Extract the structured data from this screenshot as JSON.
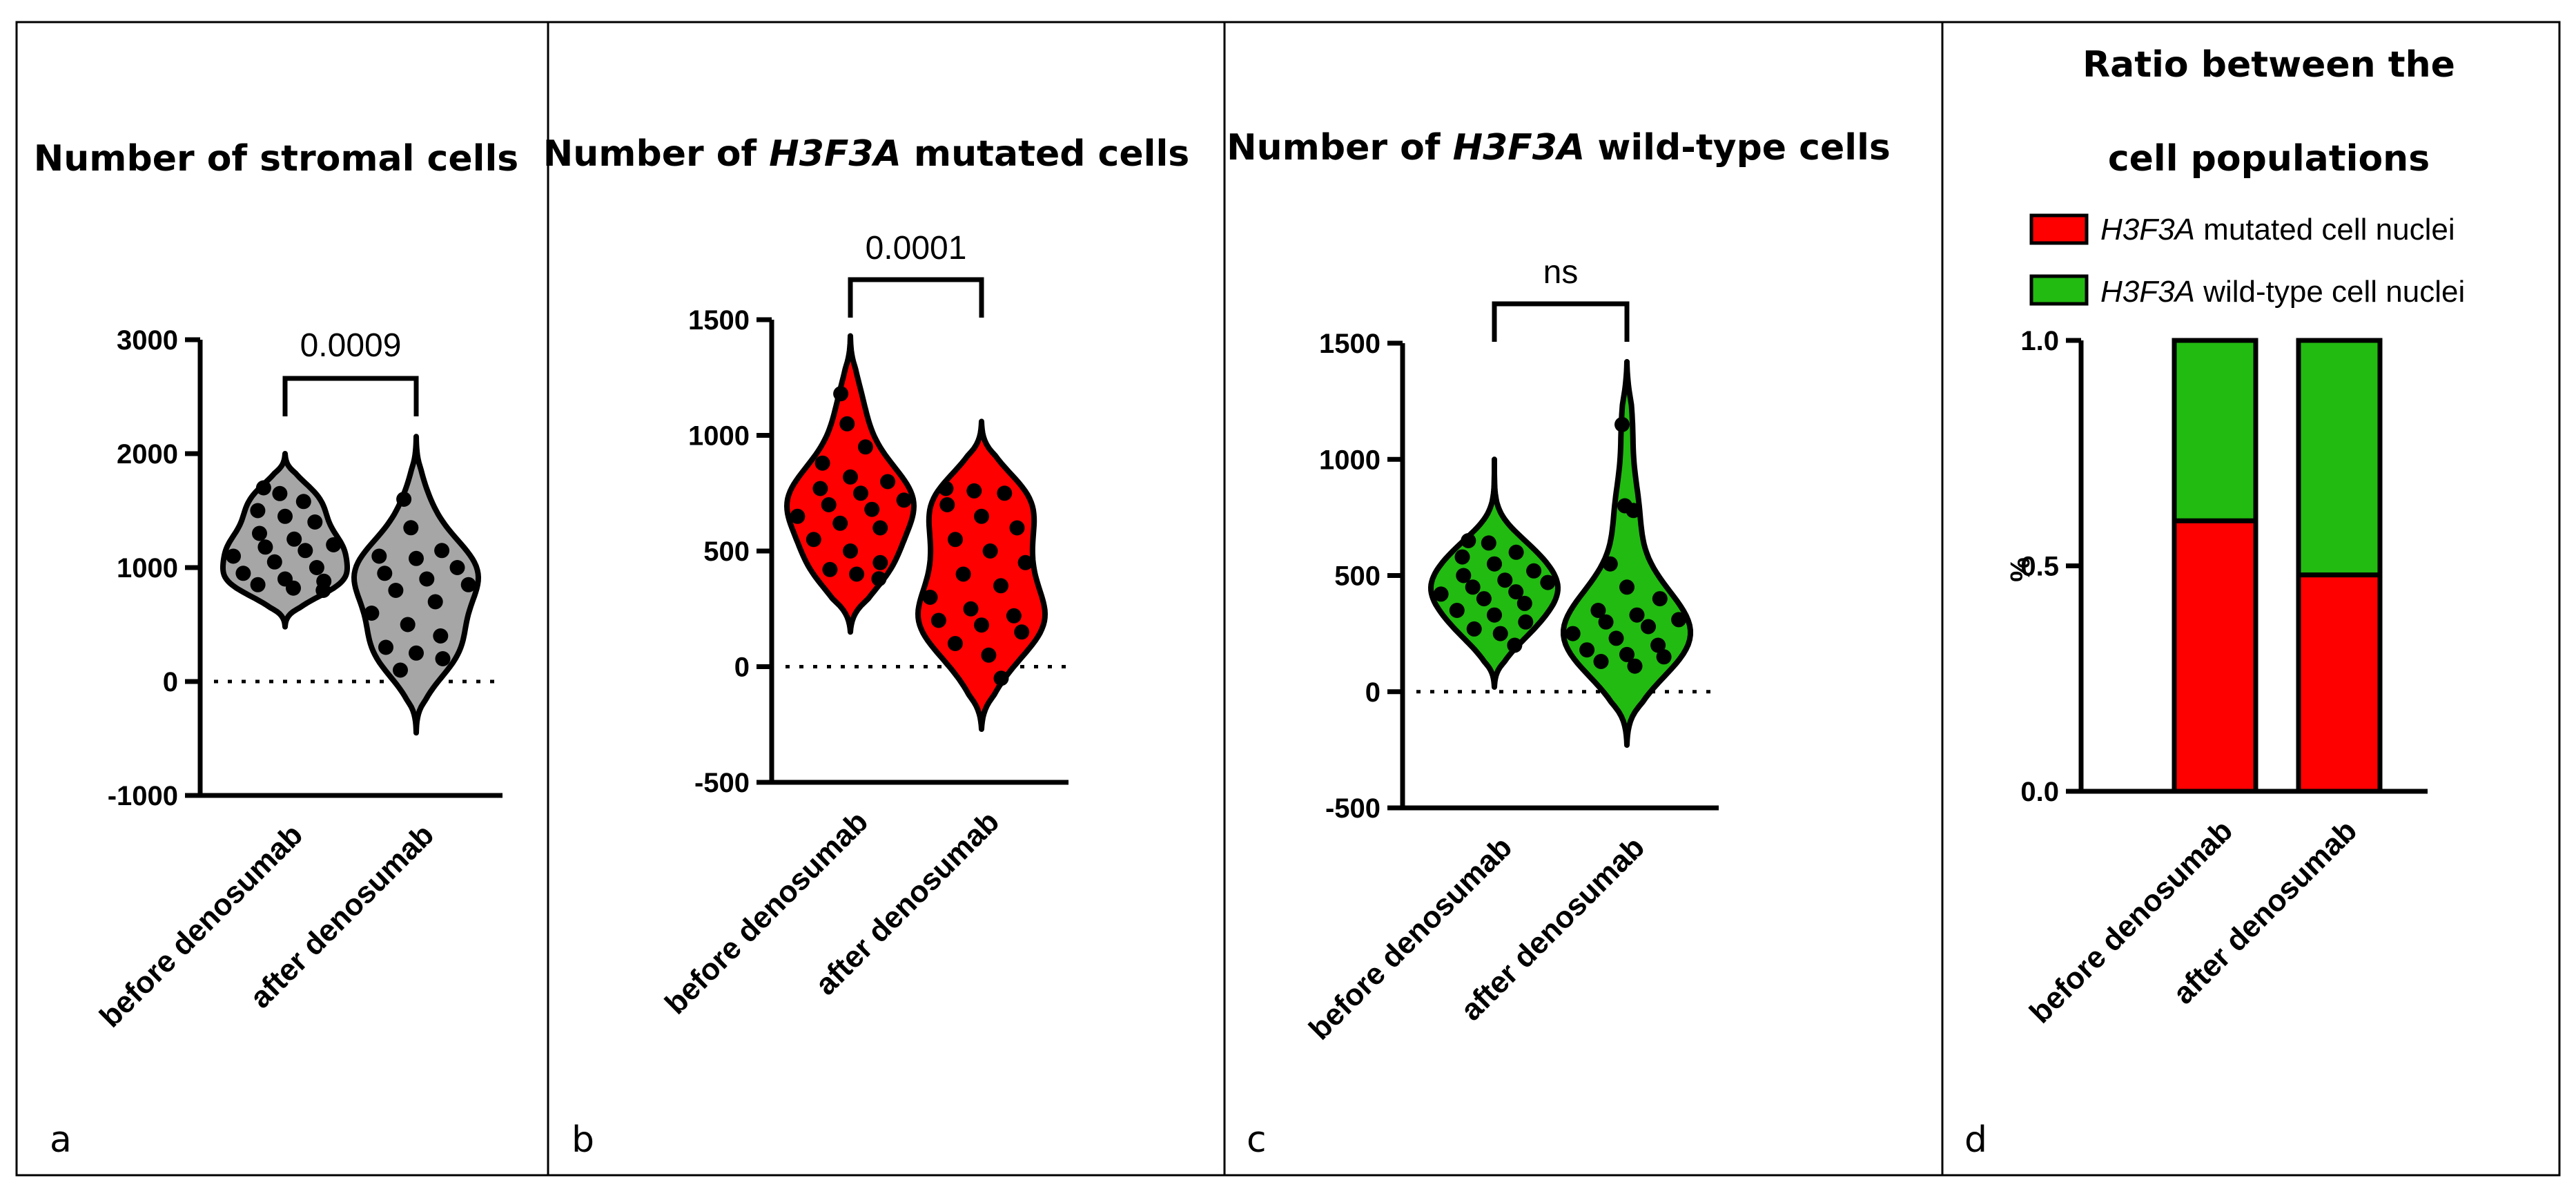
{
  "colors": {
    "grey": "#a6a6a6",
    "red": "#ff0000",
    "green": "#22bb11",
    "black": "#000000"
  },
  "chart_data": [
    {
      "type": "violin",
      "panel_label": "a",
      "title": "Number of stromal cells",
      "categories": [
        "before denosumab",
        "after denosumab"
      ],
      "ylim": [
        -1000,
        3000
      ],
      "yticks": [
        "3000",
        "2000",
        "1000",
        "0",
        "-1000"
      ],
      "significance": "0.0009",
      "fill": "#a6a6a6",
      "series": [
        {
          "name": "before denosumab",
          "range": [
            480,
            2000
          ],
          "values": [
            1700,
            1650,
            1580,
            1500,
            1450,
            1400,
            1300,
            1250,
            1200,
            1180,
            1150,
            1100,
            1050,
            1000,
            950,
            900,
            880,
            850,
            820,
            800
          ]
        },
        {
          "name": "after denosumab",
          "range": [
            -450,
            2150
          ],
          "values": [
            1600,
            1350,
            1150,
            1100,
            1080,
            1000,
            950,
            900,
            850,
            800,
            700,
            600,
            500,
            400,
            300,
            250,
            200,
            100
          ]
        }
      ]
    },
    {
      "type": "violin",
      "panel_label": "b",
      "title_parts": [
        "Number of ",
        "H3F3A",
        " mutated cells"
      ],
      "categories": [
        "before denosumab",
        "after denosumab"
      ],
      "ylim": [
        -500,
        1500
      ],
      "yticks": [
        "1500",
        "1000",
        "500",
        "0",
        "-500"
      ],
      "significance": "0.0001",
      "fill": "#ff0000",
      "series": [
        {
          "name": "before denosumab",
          "range": [
            150,
            1430
          ],
          "values": [
            1180,
            1050,
            950,
            880,
            820,
            800,
            770,
            750,
            720,
            700,
            680,
            650,
            620,
            600,
            550,
            500,
            450,
            420,
            400,
            380
          ]
        },
        {
          "name": "after denosumab",
          "range": [
            -270,
            1060
          ],
          "values": [
            770,
            760,
            750,
            700,
            650,
            600,
            550,
            500,
            450,
            400,
            350,
            300,
            250,
            220,
            200,
            180,
            150,
            100,
            50,
            -50
          ]
        }
      ]
    },
    {
      "type": "violin",
      "panel_label": "c",
      "title_parts": [
        "Number of ",
        "H3F3A",
        " wild-type cells"
      ],
      "categories": [
        "before denosumab",
        "after denosumab"
      ],
      "ylim": [
        -500,
        1500
      ],
      "yticks": [
        "1500",
        "1000",
        "500",
        "0",
        "-500"
      ],
      "significance": "ns",
      "fill": "#22bb11",
      "series": [
        {
          "name": "before denosumab",
          "range": [
            20,
            1000
          ],
          "values": [
            650,
            640,
            600,
            580,
            550,
            520,
            500,
            480,
            470,
            450,
            430,
            420,
            400,
            380,
            350,
            330,
            300,
            270,
            250,
            200
          ]
        },
        {
          "name": "after denosumab",
          "range": [
            -230,
            1420
          ],
          "values": [
            1150,
            800,
            780,
            550,
            450,
            400,
            350,
            330,
            310,
            300,
            280,
            250,
            230,
            200,
            180,
            160,
            150,
            130,
            110
          ]
        }
      ]
    },
    {
      "type": "stacked-bar",
      "panel_label": "d",
      "title_lines": [
        "Ratio between the",
        "cell populations"
      ],
      "ylabel": "%",
      "categories": [
        "before denosumab",
        "after denosumab"
      ],
      "ylim": [
        0,
        1
      ],
      "yticks": [
        "1.0",
        "0.5",
        "0.0"
      ],
      "legend": [
        {
          "italic": "H3F3A",
          "text": " mutated cell nuclei",
          "color": "#ff0000"
        },
        {
          "italic": "H3F3A",
          "text": " wild-type cell nuclei",
          "color": "#22bb11"
        }
      ],
      "series": [
        {
          "name": "H3F3A mutated cell nuclei",
          "values": [
            0.6,
            0.48
          ]
        },
        {
          "name": "H3F3A wild-type cell nuclei",
          "values": [
            0.4,
            0.52
          ]
        }
      ]
    }
  ]
}
